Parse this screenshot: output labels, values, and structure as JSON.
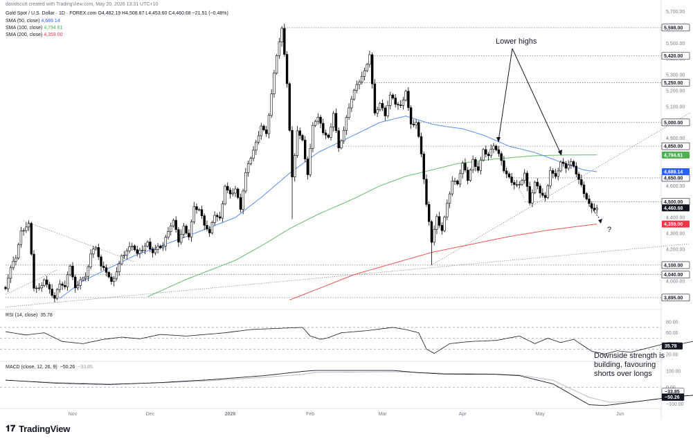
{
  "header": {
    "line1": "davidscutt created with TradingView.com, May 20, 2026 13:31 UTC+10",
    "line2": "Gold Spot / U.S. Dollar · 1D · FOREX.com  O4,482.19 H4,508.87 L4,453.60 C4,460.68 −21.51 (−0.48%)",
    "sma50_label": "SMA (50, close)",
    "sma50_value": "4,689.14",
    "sma100_label": "SMA (100, close)",
    "sma100_value": "4,794.61",
    "sma200_label": "SMA (200, close)",
    "sma200_value": "4,359.00"
  },
  "annotations": {
    "lower_highs": "Lower highs",
    "question": "?",
    "downside": [
      "Downside strength is",
      "building, favouring",
      "shorts over longs"
    ]
  },
  "rsi": {
    "label": "RSI (14, close)",
    "value": "35.78",
    "ticks": [
      "80.00",
      "60.00",
      "40.00",
      "20.00"
    ],
    "levels": [
      70,
      50,
      30
    ],
    "points": [
      [
        0,
        62
      ],
      [
        8,
        56
      ],
      [
        15,
        60
      ],
      [
        22,
        44
      ],
      [
        30,
        40
      ],
      [
        38,
        48
      ],
      [
        45,
        52
      ],
      [
        52,
        49
      ],
      [
        60,
        57
      ],
      [
        70,
        54
      ],
      [
        85,
        60
      ],
      [
        95,
        66
      ],
      [
        105,
        68
      ],
      [
        115,
        70
      ],
      [
        118,
        54
      ],
      [
        122,
        48
      ],
      [
        125,
        51
      ],
      [
        130,
        60
      ],
      [
        140,
        64
      ],
      [
        150,
        70
      ],
      [
        155,
        66
      ],
      [
        160,
        60
      ],
      [
        163,
        30
      ],
      [
        166,
        22
      ],
      [
        172,
        40
      ],
      [
        180,
        44
      ],
      [
        190,
        46
      ],
      [
        199,
        54
      ],
      [
        205,
        40
      ],
      [
        210,
        50
      ],
      [
        215,
        42
      ],
      [
        220,
        48
      ],
      [
        227,
        26
      ],
      [
        232,
        21
      ],
      [
        237,
        27
      ],
      [
        242,
        24
      ],
      [
        247,
        30
      ],
      [
        252,
        36
      ],
      [
        257,
        42
      ],
      [
        262,
        40
      ],
      [
        267,
        45
      ],
      [
        272,
        44
      ],
      [
        277,
        38
      ],
      [
        282,
        43
      ],
      [
        287,
        45
      ],
      [
        292,
        43
      ],
      [
        297,
        38
      ],
      [
        301,
        32
      ],
      [
        306,
        36
      ]
    ]
  },
  "macd": {
    "label": "MACD (close, 12, 26, 9)",
    "macd_value": "−50.26",
    "signal_value": "−33.85",
    "ticks": [
      "100.00",
      "0.00",
      "−100.00"
    ],
    "macd_points": [
      [
        0,
        45
      ],
      [
        20,
        26
      ],
      [
        40,
        18
      ],
      [
        60,
        30
      ],
      [
        80,
        48
      ],
      [
        100,
        72
      ],
      [
        115,
        98
      ],
      [
        120,
        104
      ],
      [
        150,
        104
      ],
      [
        160,
        90
      ],
      [
        170,
        82
      ],
      [
        190,
        80
      ],
      [
        199,
        72
      ],
      [
        212,
        22
      ],
      [
        226,
        -105
      ],
      [
        232,
        -110
      ],
      [
        240,
        -95
      ],
      [
        260,
        -55
      ],
      [
        280,
        -30
      ],
      [
        290,
        -30
      ],
      [
        300,
        -42
      ],
      [
        306,
        -50
      ]
    ],
    "signal_points": [
      [
        0,
        44
      ],
      [
        20,
        30
      ],
      [
        40,
        22
      ],
      [
        60,
        28
      ],
      [
        80,
        42
      ],
      [
        100,
        62
      ],
      [
        115,
        80
      ],
      [
        120,
        92
      ],
      [
        150,
        96
      ],
      [
        160,
        92
      ],
      [
        170,
        86
      ],
      [
        190,
        82
      ],
      [
        199,
        76
      ],
      [
        212,
        44
      ],
      [
        226,
        -60
      ],
      [
        234,
        -90
      ],
      [
        245,
        -85
      ],
      [
        260,
        -55
      ],
      [
        280,
        -33
      ],
      [
        306,
        -34
      ]
    ]
  },
  "chart_data": {
    "type": "candlestick",
    "title": "Gold Spot / U.S. Dollar · 1D · FOREX.com",
    "x_labels": [
      {
        "d": 26,
        "label": "Nov"
      },
      {
        "d": 56,
        "label": "Dec"
      },
      {
        "d": 87,
        "label": "2026"
      },
      {
        "d": 118,
        "label": "Feb"
      },
      {
        "d": 146,
        "label": "Mar"
      },
      {
        "d": 177,
        "label": "Apr"
      },
      {
        "d": 207,
        "label": "May"
      },
      {
        "d": 238,
        "label": "Jun"
      }
    ],
    "y_ticks": [
      3900,
      4000,
      4100,
      4200,
      4300,
      4400,
      4500,
      4600,
      4700,
      4800,
      4900,
      5000,
      5100,
      5200,
      5300,
      5400,
      5500,
      5600,
      5700
    ],
    "price_anchors": [
      [
        0,
        3960
      ],
      [
        2,
        4080
      ],
      [
        4,
        4150
      ],
      [
        6,
        4310
      ],
      [
        9,
        4360
      ],
      [
        11,
        3960
      ],
      [
        13,
        3950
      ],
      [
        15,
        4010
      ],
      [
        17,
        3940
      ],
      [
        19,
        3890
      ],
      [
        21,
        3990
      ],
      [
        23,
        3960
      ],
      [
        25,
        4100
      ],
      [
        27,
        3950
      ],
      [
        29,
        4010
      ],
      [
        31,
        4020
      ],
      [
        33,
        4170
      ],
      [
        35,
        4220
      ],
      [
        37,
        4090
      ],
      [
        39,
        4060
      ],
      [
        41,
        3990
      ],
      [
        43,
        4060
      ],
      [
        45,
        4150
      ],
      [
        47,
        4190
      ],
      [
        49,
        4230
      ],
      [
        51,
        4170
      ],
      [
        53,
        4200
      ],
      [
        55,
        4240
      ],
      [
        57,
        4180
      ],
      [
        59,
        4210
      ],
      [
        61,
        4220
      ],
      [
        63,
        4320
      ],
      [
        65,
        4380
      ],
      [
        67,
        4250
      ],
      [
        69,
        4340
      ],
      [
        71,
        4280
      ],
      [
        73,
        4460
      ],
      [
        75,
        4450
      ],
      [
        77,
        4360
      ],
      [
        79,
        4300
      ],
      [
        81,
        4420
      ],
      [
        83,
        4390
      ],
      [
        85,
        4600
      ],
      [
        87,
        4540
      ],
      [
        89,
        4580
      ],
      [
        91,
        4460
      ],
      [
        93,
        4680
      ],
      [
        95,
        4780
      ],
      [
        97,
        4870
      ],
      [
        99,
        4980
      ],
      [
        101,
        4920
      ],
      [
        103,
        5180
      ],
      [
        105,
        5430
      ],
      [
        107,
        5590
      ],
      [
        109,
        5250
      ],
      [
        111,
        4650
      ],
      [
        113,
        4950
      ],
      [
        115,
        4880
      ],
      [
        117,
        4670
      ],
      [
        119,
        4990
      ],
      [
        121,
        5030
      ],
      [
        123,
        4940
      ],
      [
        125,
        4900
      ],
      [
        127,
        5060
      ],
      [
        129,
        4830
      ],
      [
        131,
        4950
      ],
      [
        133,
        5100
      ],
      [
        135,
        5200
      ],
      [
        137,
        5260
      ],
      [
        139,
        5320
      ],
      [
        141,
        5430
      ],
      [
        143,
        5050
      ],
      [
        145,
        5120
      ],
      [
        147,
        5050
      ],
      [
        149,
        5170
      ],
      [
        151,
        5120
      ],
      [
        153,
        5100
      ],
      [
        155,
        5200
      ],
      [
        157,
        4980
      ],
      [
        159,
        5000
      ],
      [
        161,
        4810
      ],
      [
        163,
        4480
      ],
      [
        165,
        4250
      ],
      [
        167,
        4400
      ],
      [
        169,
        4320
      ],
      [
        171,
        4480
      ],
      [
        173,
        4630
      ],
      [
        175,
        4620
      ],
      [
        177,
        4740
      ],
      [
        179,
        4640
      ],
      [
        181,
        4760
      ],
      [
        183,
        4700
      ],
      [
        185,
        4820
      ],
      [
        187,
        4790
      ],
      [
        189,
        4860
      ],
      [
        191,
        4800
      ],
      [
        193,
        4700
      ],
      [
        195,
        4650
      ],
      [
        197,
        4610
      ],
      [
        199,
        4600
      ],
      [
        201,
        4680
      ],
      [
        203,
        4500
      ],
      [
        205,
        4620
      ],
      [
        207,
        4560
      ],
      [
        209,
        4520
      ],
      [
        211,
        4700
      ],
      [
        213,
        4650
      ],
      [
        215,
        4750
      ],
      [
        217,
        4720
      ],
      [
        219,
        4750
      ],
      [
        221,
        4680
      ],
      [
        223,
        4600
      ],
      [
        225,
        4520
      ],
      [
        227,
        4450
      ],
      [
        229,
        4460
      ]
    ],
    "sma_anchors": {
      "sma50": [
        [
          21,
          3890
        ],
        [
          30,
          4000
        ],
        [
          50,
          4160
        ],
        [
          70,
          4280
        ],
        [
          89,
          4400
        ],
        [
          100,
          4540
        ],
        [
          110,
          4680
        ],
        [
          121,
          4810
        ],
        [
          135,
          4920
        ],
        [
          145,
          5000
        ],
        [
          155,
          5040
        ],
        [
          165,
          4990
        ],
        [
          170,
          4975
        ],
        [
          177,
          4960
        ],
        [
          185,
          4920
        ],
        [
          195,
          4850
        ],
        [
          205,
          4810
        ],
        [
          215,
          4750
        ],
        [
          224,
          4700
        ],
        [
          229,
          4689
        ]
      ],
      "sma100": [
        [
          55,
          3900
        ],
        [
          70,
          4010
        ],
        [
          89,
          4130
        ],
        [
          100,
          4230
        ],
        [
          110,
          4330
        ],
        [
          121,
          4420
        ],
        [
          135,
          4520
        ],
        [
          145,
          4600
        ],
        [
          155,
          4660
        ],
        [
          165,
          4700
        ],
        [
          175,
          4740
        ],
        [
          190,
          4770
        ],
        [
          205,
          4790
        ],
        [
          215,
          4794
        ],
        [
          229,
          4795
        ]
      ],
      "sma200": [
        [
          110,
          3880
        ],
        [
          121,
          3950
        ],
        [
          135,
          4040
        ],
        [
          150,
          4110
        ],
        [
          165,
          4180
        ],
        [
          180,
          4230
        ],
        [
          195,
          4280
        ],
        [
          210,
          4320
        ],
        [
          229,
          4359
        ]
      ]
    },
    "level_lines": [
      {
        "value": 5598,
        "label": "5,598.00",
        "from": 107
      },
      {
        "value": 5420,
        "label": "5,420.00",
        "from": 141
      },
      {
        "value": 5250,
        "label": "5,250.00",
        "from": 137
      },
      {
        "value": 5000,
        "label": "5,000.00",
        "from": 157
      },
      {
        "value": 4850,
        "label": "4,850.00",
        "from": 127
      },
      {
        "value": 4650,
        "label": "4,650.00",
        "from": 194
      },
      {
        "value": 4500,
        "label": "4,500.00",
        "from": 201
      },
      {
        "value": 4100,
        "label": "4,100.00",
        "from": 0
      },
      {
        "value": 4040,
        "label": "4,040.00",
        "from": 0
      },
      {
        "value": 3895,
        "label": "3,895.00",
        "from": 0
      }
    ],
    "price_tags": [
      {
        "value": 4794.61,
        "label": "4,794.61",
        "color": "#4caf50"
      },
      {
        "value": 4689.14,
        "label": "4,689.14",
        "color": "#2962ff"
      },
      {
        "value": 4460.68,
        "label": "4,460.68",
        "color": "#131722"
      },
      {
        "value": 4359.0,
        "label": "4,359.00",
        "color": "#f23645"
      }
    ],
    "trendlines": [
      {
        "points": [
          [
            7,
            4380
          ],
          [
            50,
            4120
          ]
        ],
        "style": "dotted"
      },
      {
        "points": [
          [
            0,
            3915
          ],
          [
            20,
            4070
          ]
        ],
        "style": "dotted"
      },
      {
        "points": [
          [
            165,
            4100
          ],
          [
            265,
            5060
          ]
        ],
        "style": "dotted"
      },
      {
        "points": [
          [
            0,
            3835
          ],
          [
            265,
            4235
          ]
        ],
        "style": "dotted"
      },
      {
        "points": [
          [
            189,
            4860
          ],
          [
            201,
            4520
          ]
        ],
        "style": "dotted"
      }
    ],
    "colors": {
      "up": "#ffffff",
      "down": "#000000",
      "sma50": "#5b8ce8",
      "sma100": "#66bb6a",
      "sma200": "#ef5350",
      "rsi": "#131722",
      "macd": "#131722",
      "signal": "#b2b5be"
    }
  }
}
